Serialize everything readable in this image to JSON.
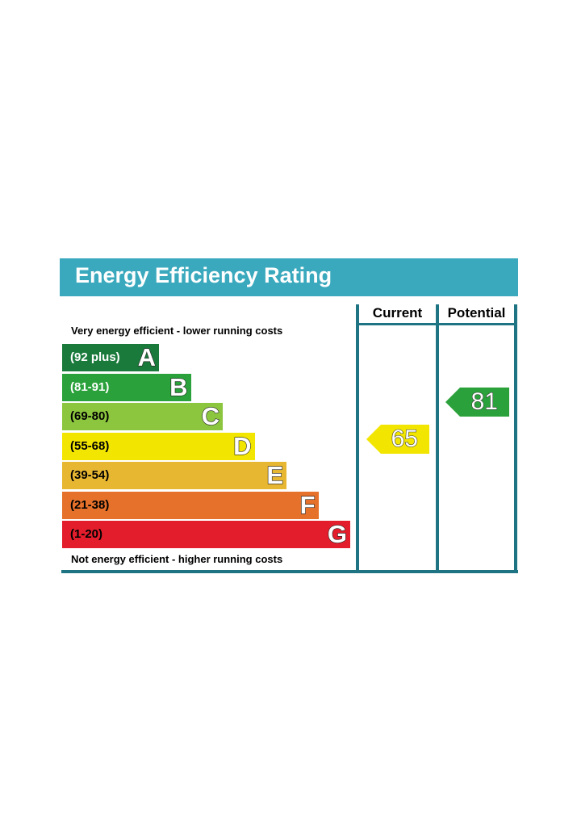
{
  "title": "Energy Efficiency Rating",
  "columns": {
    "current": "Current",
    "potential": "Potential"
  },
  "top_caption": "Very energy efficient - lower running costs",
  "bottom_caption": "Not energy efficient - higher running costs",
  "chart_data": {
    "type": "bar",
    "title": "Energy Efficiency Rating",
    "bands": [
      {
        "letter": "A",
        "range": "(92 plus)",
        "color": "#1a7a3c"
      },
      {
        "letter": "B",
        "range": "(81-91)",
        "color": "#2aa13a"
      },
      {
        "letter": "C",
        "range": "(69-80)",
        "color": "#8cc63f"
      },
      {
        "letter": "D",
        "range": "(55-68)",
        "color": "#f2e600"
      },
      {
        "letter": "E",
        "range": "(39-54)",
        "color": "#e8b732"
      },
      {
        "letter": "F",
        "range": "(21-38)",
        "color": "#e5712a"
      },
      {
        "letter": "G",
        "range": "(1-20)",
        "color": "#e31d2b"
      }
    ],
    "current": {
      "value": 65,
      "band": "D",
      "color": "#f2e600"
    },
    "potential": {
      "value": 81,
      "band": "B",
      "color": "#2aa13a"
    }
  }
}
